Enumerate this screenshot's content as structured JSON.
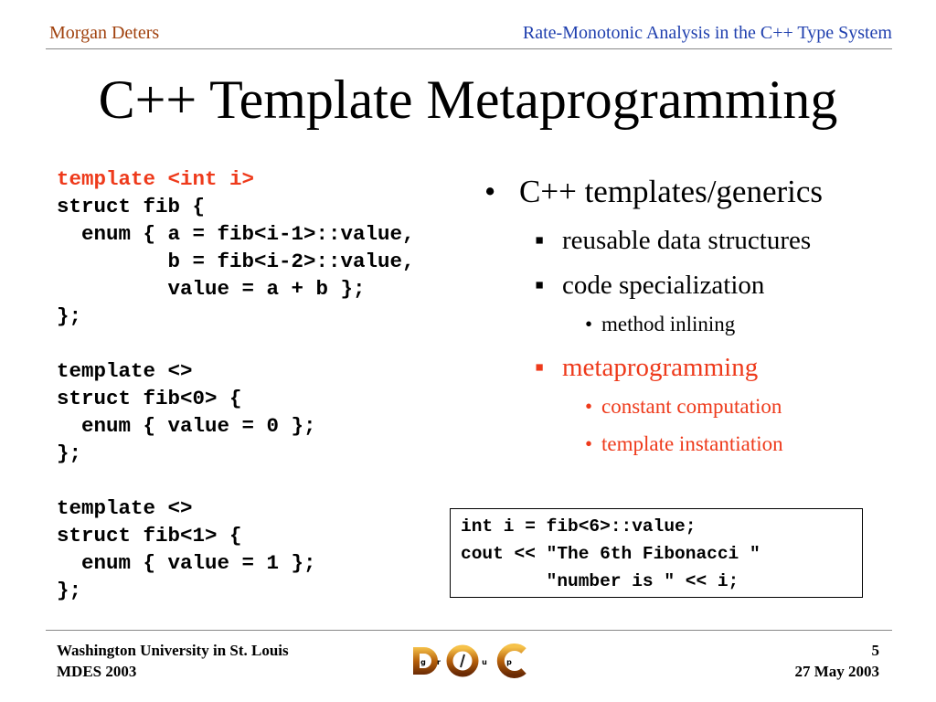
{
  "header": {
    "author": "Morgan Deters",
    "talk_title": "Rate-Monotonic Analysis in the C++ Type System"
  },
  "title": "C++ Template Metaprogramming",
  "code_left": [
    {
      "text": "template <int i>",
      "highlight": true
    },
    {
      "text": "struct fib {",
      "highlight": false
    },
    {
      "text": "  enum { a = fib<i-1>::value,",
      "highlight": false
    },
    {
      "text": "         b = fib<i-2>::value,",
      "highlight": false
    },
    {
      "text": "         value = a + b };",
      "highlight": false
    },
    {
      "text": "};",
      "highlight": false
    },
    {
      "text": "",
      "highlight": false
    },
    {
      "text": "template <>",
      "highlight": false
    },
    {
      "text": "struct fib<0> {",
      "highlight": false
    },
    {
      "text": "  enum { value = 0 };",
      "highlight": false
    },
    {
      "text": "};",
      "highlight": false
    },
    {
      "text": "",
      "highlight": false
    },
    {
      "text": "template <>",
      "highlight": false
    },
    {
      "text": "struct fib<1> {",
      "highlight": false
    },
    {
      "text": "  enum { value = 1 };",
      "highlight": false
    },
    {
      "text": "};",
      "highlight": false
    }
  ],
  "bullets": [
    {
      "level": 1,
      "text": "C++ templates/generics",
      "highlight": false
    },
    {
      "level": 2,
      "text": "reusable data structures",
      "highlight": false
    },
    {
      "level": 2,
      "text": "code specialization",
      "highlight": false
    },
    {
      "level": 3,
      "text": "method inlining",
      "highlight": false
    },
    {
      "level": 2,
      "text": "metaprogramming",
      "highlight": true
    },
    {
      "level": 3,
      "text": "constant computation",
      "highlight": true
    },
    {
      "level": 3,
      "text": "template instantiation",
      "highlight": true
    }
  ],
  "code_box": [
    "int i = fib<6>::value;",
    "cout << \"The 6th Fibonacci \"",
    "        \"number is \" << i;"
  ],
  "footer": {
    "institution": "Washington University in St. Louis",
    "event": "MDES 2003",
    "page": "5",
    "date": "27 May 2003",
    "logo_text": "DOC group"
  },
  "colors": {
    "highlight": "#ee3a1b",
    "author": "#a0410d",
    "talk_title": "#1f3fae"
  }
}
